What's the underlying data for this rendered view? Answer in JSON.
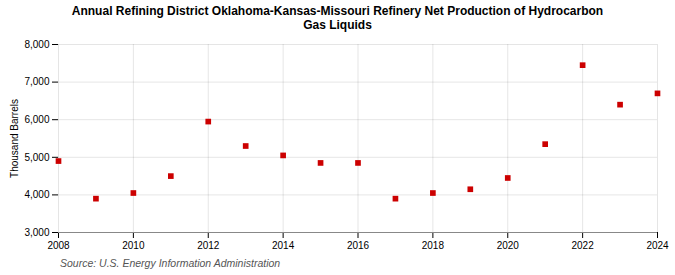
{
  "chart_data": {
    "type": "scatter",
    "title": "Annual Refining District Oklahoma-Kansas-Missouri Refinery Net Production of Hydrocarbon\nGas Liquids",
    "ylabel": "Thousand Barrels",
    "source": "Source: U.S. Energy Information Administration",
    "x": [
      2008,
      2009,
      2010,
      2011,
      2012,
      2013,
      2014,
      2015,
      2016,
      2017,
      2018,
      2019,
      2020,
      2021,
      2022,
      2023,
      2024
    ],
    "values": [
      4900,
      3900,
      4050,
      4500,
      5950,
      5300,
      5050,
      4850,
      4850,
      3900,
      4050,
      4150,
      4450,
      5350,
      7450,
      6400,
      6700
    ],
    "color": "#cc0000",
    "marker": "square",
    "xlim": [
      2008,
      2024
    ],
    "xticks": [
      2008,
      2010,
      2012,
      2014,
      2016,
      2018,
      2020,
      2022,
      2024
    ],
    "ylim": [
      3000,
      8000
    ],
    "yticks": [
      {
        "value": 3000,
        "label": "3,000"
      },
      {
        "value": 4000,
        "label": "4,000"
      },
      {
        "value": 5000,
        "label": "5,000"
      },
      {
        "value": 6000,
        "label": "6,000"
      },
      {
        "value": 7000,
        "label": "7,000"
      },
      {
        "value": 8000,
        "label": "8,000"
      }
    ],
    "grid": true
  }
}
